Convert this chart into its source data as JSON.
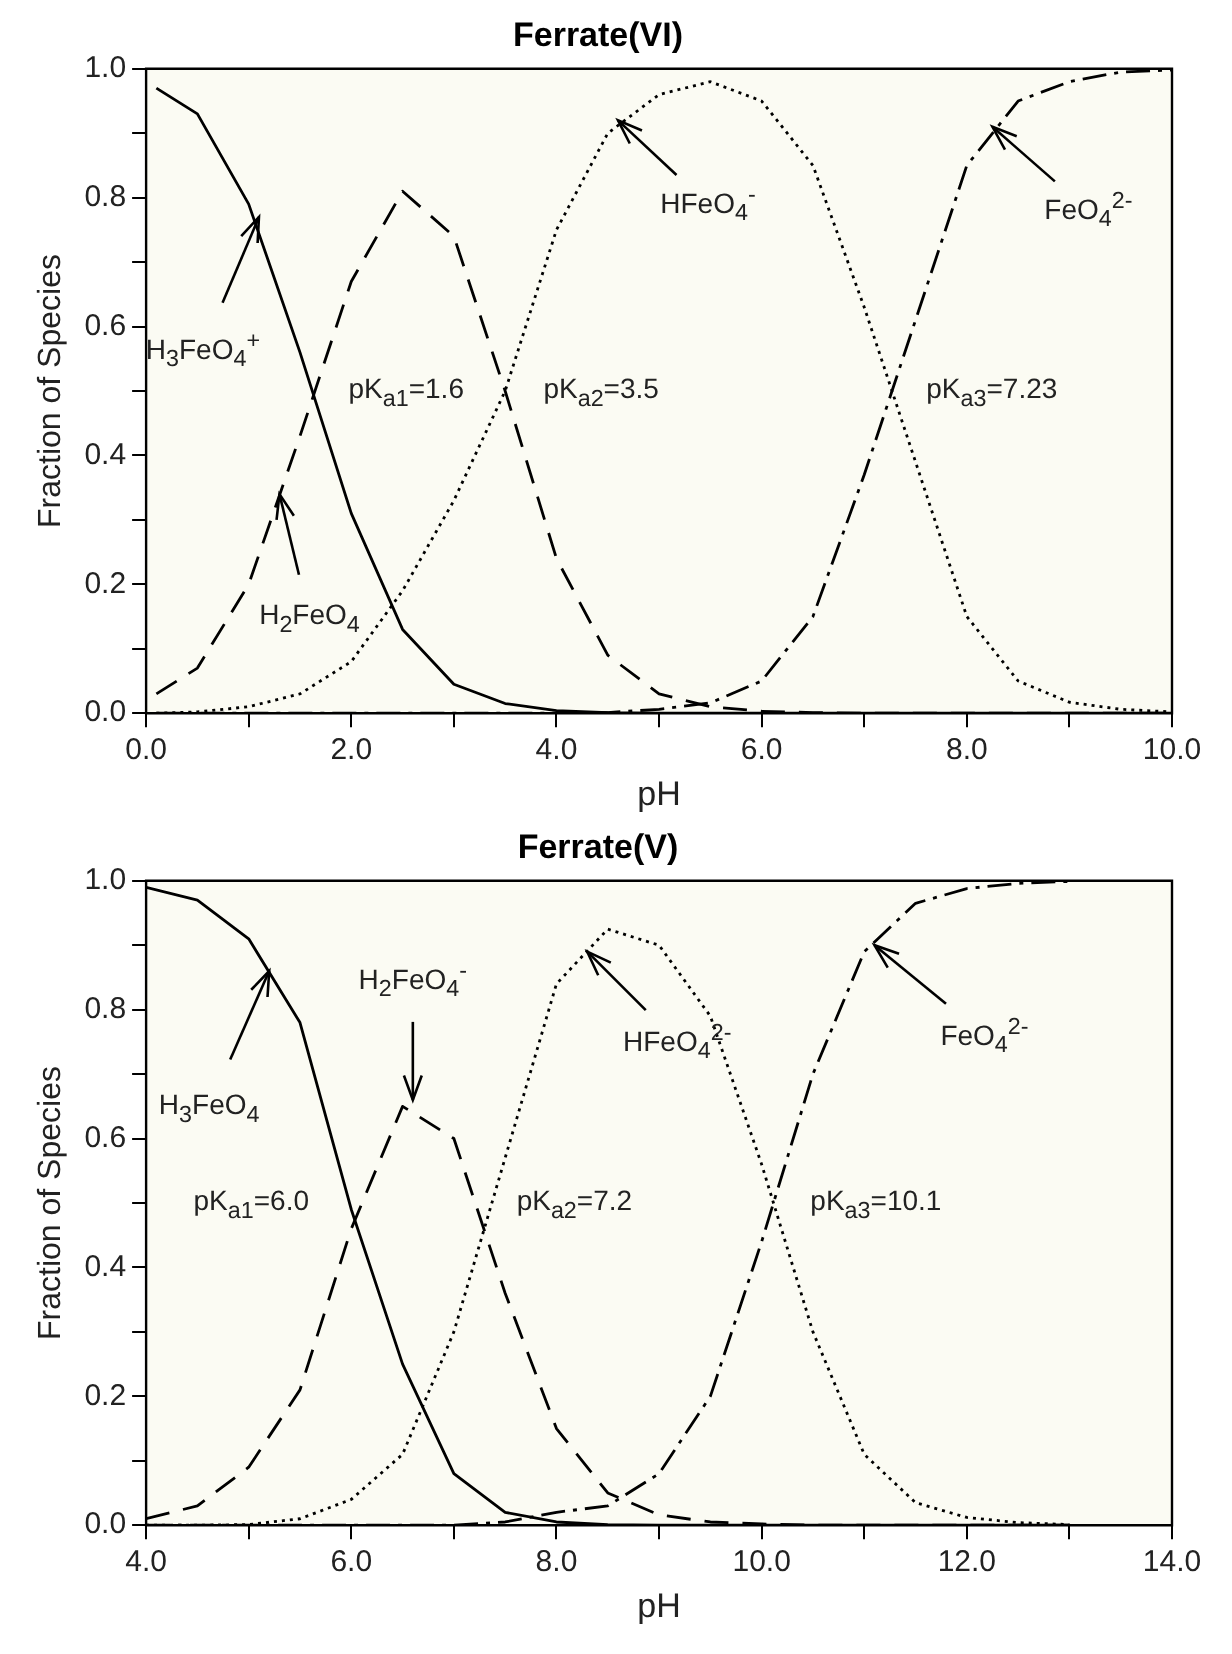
{
  "chart_data": [
    {
      "type": "line",
      "title": "Ferrate(VI)",
      "xlabel": "pH",
      "ylabel": "Fraction of Species",
      "legend": false,
      "grid": false,
      "marker": "none",
      "x": [
        0.1,
        0.5,
        1.0,
        1.5,
        2.0,
        2.5,
        3.0,
        3.5,
        4.0,
        4.5,
        5.0,
        5.5,
        6.0,
        6.5,
        7.0,
        7.5,
        8.0,
        8.5,
        9.0,
        9.5,
        10.0
      ],
      "series": [
        {
          "color": "#000000",
          "line_style": "solid",
          "values": [
            0.97,
            0.93,
            0.79,
            0.56,
            0.31,
            0.13,
            0.045,
            0.015,
            0.004,
            0.001,
            0,
            0,
            0,
            0,
            0,
            0,
            0,
            0,
            0,
            0,
            0
          ]
        },
        {
          "color": "#000000",
          "line_style": "dashed",
          "values": [
            0.03,
            0.07,
            0.2,
            0.43,
            0.67,
            0.81,
            0.74,
            0.5,
            0.24,
            0.09,
            0.03,
            0.01,
            0.003,
            0.001,
            0,
            0,
            0,
            0,
            0,
            0,
            0
          ]
        },
        {
          "color": "#000000",
          "line_style": "dotted",
          "values": [
            0,
            0.002,
            0.01,
            0.03,
            0.08,
            0.19,
            0.33,
            0.5,
            0.75,
            0.9,
            0.96,
            0.98,
            0.95,
            0.85,
            0.63,
            0.39,
            0.15,
            0.05,
            0.017,
            0.006,
            0.002
          ]
        },
        {
          "color": "#000000",
          "line_style": "dashdot",
          "values": [
            0,
            0,
            0,
            0,
            0,
            0,
            0,
            0,
            0,
            0.001,
            0.006,
            0.016,
            0.05,
            0.15,
            0.37,
            0.61,
            0.85,
            0.95,
            0.98,
            0.995,
            0.998
          ]
        }
      ],
      "xlim": [
        0,
        10
      ],
      "ylim": [
        0,
        1
      ],
      "xticks": [
        {
          "value": 0,
          "label": "0.0"
        },
        {
          "value": 1,
          "label": null
        },
        {
          "value": 2,
          "label": "2.0"
        },
        {
          "value": 3,
          "label": null
        },
        {
          "value": 4,
          "label": "4.0"
        },
        {
          "value": 5,
          "label": null
        },
        {
          "value": 6,
          "label": "6.0"
        },
        {
          "value": 7,
          "label": null
        },
        {
          "value": 8,
          "label": "8.0"
        },
        {
          "value": 9,
          "label": null
        },
        {
          "value": 10,
          "label": "10.0"
        }
      ],
      "yticks": [
        {
          "value": 0,
          "label": "0.0"
        },
        {
          "value": 0.1,
          "label": null
        },
        {
          "value": 0.2,
          "label": "0.2"
        },
        {
          "value": 0.3,
          "label": null
        },
        {
          "value": 0.4,
          "label": "0.4"
        },
        {
          "value": 0.5,
          "label": null
        },
        {
          "value": 0.6,
          "label": "0.6"
        },
        {
          "value": 0.7,
          "label": null
        },
        {
          "value": 0.8,
          "label": "0.8"
        },
        {
          "value": 0.9,
          "label": null
        },
        {
          "value": 1,
          "label": "1.0"
        }
      ],
      "annotations": [
        {
          "text": "H$_{3}$FeO$_{4}$$^{+}$",
          "x": 1.1,
          "y": 0.77
        },
        {
          "text": "H$_{2}$FeO$_{4}$",
          "x": 1.3,
          "y": 0.34
        },
        {
          "text": "HFeO$_{4}$$^{-}$",
          "x": 4.6,
          "y": 0.92
        },
        {
          "text": "FeO$_{4}$$^{2-}$",
          "x": 8.25,
          "y": 0.91
        },
        {
          "text": "pK$_{a1}$=1.6",
          "x": 1.6,
          "y": 0.5
        },
        {
          "text": "pK$_{a2}$=3.5",
          "x": 3.5,
          "y": 0.5
        },
        {
          "text": "pK$_{a3}$=7.23",
          "x": 7.23,
          "y": 0.5
        }
      ]
    },
    {
      "type": "line",
      "title": "Ferrate(V)",
      "xlabel": "pH",
      "ylabel": "Fraction of Species",
      "legend": false,
      "grid": false,
      "marker": "none",
      "x": [
        4.0,
        4.5,
        5.0,
        5.5,
        6.0,
        6.5,
        7.0,
        7.5,
        8.0,
        8.5,
        9.0,
        9.5,
        10.0,
        10.5,
        11.0,
        11.5,
        12.0,
        12.5,
        13.0
      ],
      "series": [
        {
          "color": "#000000",
          "line_style": "solid",
          "values": [
            0.99,
            0.97,
            0.91,
            0.78,
            0.49,
            0.25,
            0.08,
            0.02,
            0.005,
            0.001,
            0,
            0,
            0,
            0,
            0,
            0,
            0,
            0,
            0
          ]
        },
        {
          "color": "#000000",
          "line_style": "dashed",
          "values": [
            0.01,
            0.03,
            0.09,
            0.21,
            0.46,
            0.65,
            0.6,
            0.36,
            0.15,
            0.05,
            0.016,
            0.005,
            0.002,
            0,
            0,
            0,
            0,
            0,
            0
          ]
        },
        {
          "color": "#000000",
          "line_style": "dotted",
          "values": [
            0,
            0,
            0.001,
            0.01,
            0.04,
            0.11,
            0.3,
            0.57,
            0.84,
            0.925,
            0.9,
            0.79,
            0.56,
            0.3,
            0.11,
            0.035,
            0.012,
            0.004,
            0.001
          ]
        },
        {
          "color": "#000000",
          "line_style": "dashdot",
          "values": [
            0,
            0,
            0,
            0,
            0,
            0,
            0,
            0.005,
            0.02,
            0.03,
            0.08,
            0.2,
            0.44,
            0.7,
            0.89,
            0.965,
            0.988,
            0.996,
            0.999
          ]
        }
      ],
      "xlim": [
        4,
        14
      ],
      "ylim": [
        0,
        1
      ],
      "xticks": [
        {
          "value": 4,
          "label": "4.0"
        },
        {
          "value": 5,
          "label": null
        },
        {
          "value": 6,
          "label": "6.0"
        },
        {
          "value": 7,
          "label": null
        },
        {
          "value": 8,
          "label": "8.0"
        },
        {
          "value": 9,
          "label": null
        },
        {
          "value": 10,
          "label": "10.0"
        },
        {
          "value": 11,
          "label": null
        },
        {
          "value": 12,
          "label": "12.0"
        },
        {
          "value": 13,
          "label": null
        },
        {
          "value": 14,
          "label": "14.0"
        }
      ],
      "yticks": [
        {
          "value": 0,
          "label": "0.0"
        },
        {
          "value": 0.1,
          "label": null
        },
        {
          "value": 0.2,
          "label": "0.2"
        },
        {
          "value": 0.3,
          "label": null
        },
        {
          "value": 0.4,
          "label": "0.4"
        },
        {
          "value": 0.5,
          "label": null
        },
        {
          "value": 0.6,
          "label": "0.6"
        },
        {
          "value": 0.7,
          "label": null
        },
        {
          "value": 0.8,
          "label": "0.8"
        },
        {
          "value": 0.9,
          "label": null
        },
        {
          "value": 1,
          "label": "1.0"
        }
      ],
      "annotations": [
        {
          "text": "H$_{3}$FeO$_{4}$",
          "x": 5.2,
          "y": 0.86
        },
        {
          "text": "H$_{2}$FeO$_{4}$$^{-}$",
          "x": 6.6,
          "y": 0.66
        },
        {
          "text": "HFeO$_{4}$$^{2-}$",
          "x": 8.3,
          "y": 0.89
        },
        {
          "text": "FeO$_{4}$$^{2-}$",
          "x": 11.1,
          "y": 0.9
        },
        {
          "text": "pK$_{a1}$=6.0",
          "x": 6.0,
          "y": 0.5
        },
        {
          "text": "pK$_{a2}$=7.2",
          "x": 7.2,
          "y": 0.5
        },
        {
          "text": "pK$_{a3}$=10.1",
          "x": 10.1,
          "y": 0.5
        }
      ]
    }
  ]
}
